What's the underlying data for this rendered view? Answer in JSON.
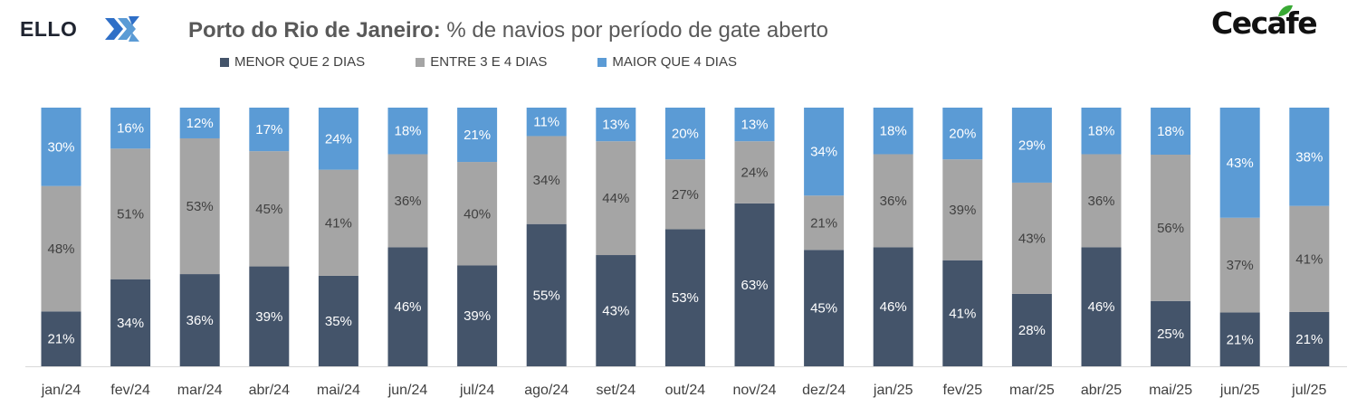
{
  "logos": {
    "left": {
      "text": "ELLO",
      "mark": "ello-x-mark"
    },
    "right": {
      "text": "Cecafe",
      "leaf_icon": "coffee-leaf-icon"
    }
  },
  "title": {
    "bold": "Porto do Rio de Janeiro:",
    "rest": " % de navios por período de gate aberto"
  },
  "colors": {
    "menor": "#44546a",
    "entre": "#a5a5a5",
    "maior": "#5b9bd5",
    "axis": "#d9d9d9",
    "tick_text": "#404040",
    "label_dark": "#404040",
    "label_light": "#ffffff"
  },
  "chart_data": {
    "type": "bar",
    "stacked": true,
    "title": "Porto do Rio de Janeiro: % de navios por período de gate aberto",
    "categories": [
      "jan/24",
      "fev/24",
      "mar/24",
      "abr/24",
      "mai/24",
      "jun/24",
      "jul/24",
      "ago/24",
      "set/24",
      "out/24",
      "nov/24",
      "dez/24",
      "jan/25",
      "fev/25",
      "mar/25",
      "abr/25",
      "mai/25",
      "jun/25",
      "jul/25"
    ],
    "series": [
      {
        "name": "MENOR QUE 2 DIAS",
        "values": [
          21,
          34,
          36,
          39,
          35,
          46,
          39,
          55,
          43,
          53,
          63,
          45,
          46,
          41,
          28,
          46,
          25,
          21,
          21
        ]
      },
      {
        "name": "ENTRE 3 E 4 DIAS",
        "values": [
          48,
          51,
          53,
          45,
          41,
          36,
          40,
          34,
          44,
          27,
          24,
          21,
          36,
          39,
          43,
          36,
          56,
          37,
          41
        ]
      },
      {
        "name": "MAIOR QUE 4 DIAS",
        "values": [
          30,
          16,
          12,
          17,
          24,
          18,
          21,
          11,
          13,
          20,
          13,
          34,
          18,
          20,
          29,
          18,
          18,
          43,
          38
        ]
      }
    ],
    "legend_position": "top",
    "grid": false
  }
}
